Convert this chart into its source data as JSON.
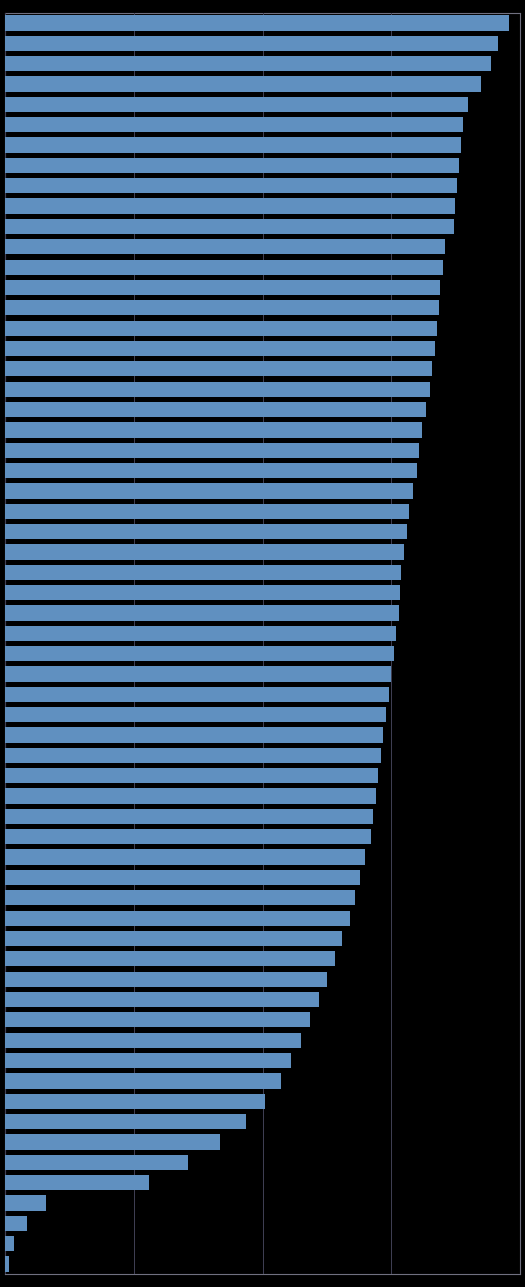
{
  "bar_color": "#6090c0",
  "background_color": "#000000",
  "plot_background": "#000000",
  "grid_color": "#404055",
  "spine_color": "#707080",
  "values": [
    3.92,
    3.83,
    3.78,
    3.7,
    3.6,
    3.56,
    3.54,
    3.53,
    3.51,
    3.5,
    3.49,
    3.42,
    3.4,
    3.38,
    3.37,
    3.36,
    3.34,
    3.32,
    3.3,
    3.27,
    3.24,
    3.22,
    3.2,
    3.17,
    3.14,
    3.12,
    3.1,
    3.08,
    3.07,
    3.06,
    3.04,
    3.02,
    3.0,
    2.98,
    2.96,
    2.94,
    2.92,
    2.9,
    2.88,
    2.86,
    2.84,
    2.8,
    2.76,
    2.72,
    2.68,
    2.62,
    2.56,
    2.5,
    2.44,
    2.37,
    2.3,
    2.22,
    2.14,
    2.02,
    1.87,
    1.67,
    1.42,
    1.12,
    0.32,
    0.17,
    0.07,
    0.03
  ],
  "xlim": [
    0,
    4.0
  ],
  "xticks": [
    0,
    1,
    2,
    3,
    4
  ],
  "bar_height": 0.75,
  "figsize": [
    5.25,
    12.87
  ],
  "dpi": 100
}
